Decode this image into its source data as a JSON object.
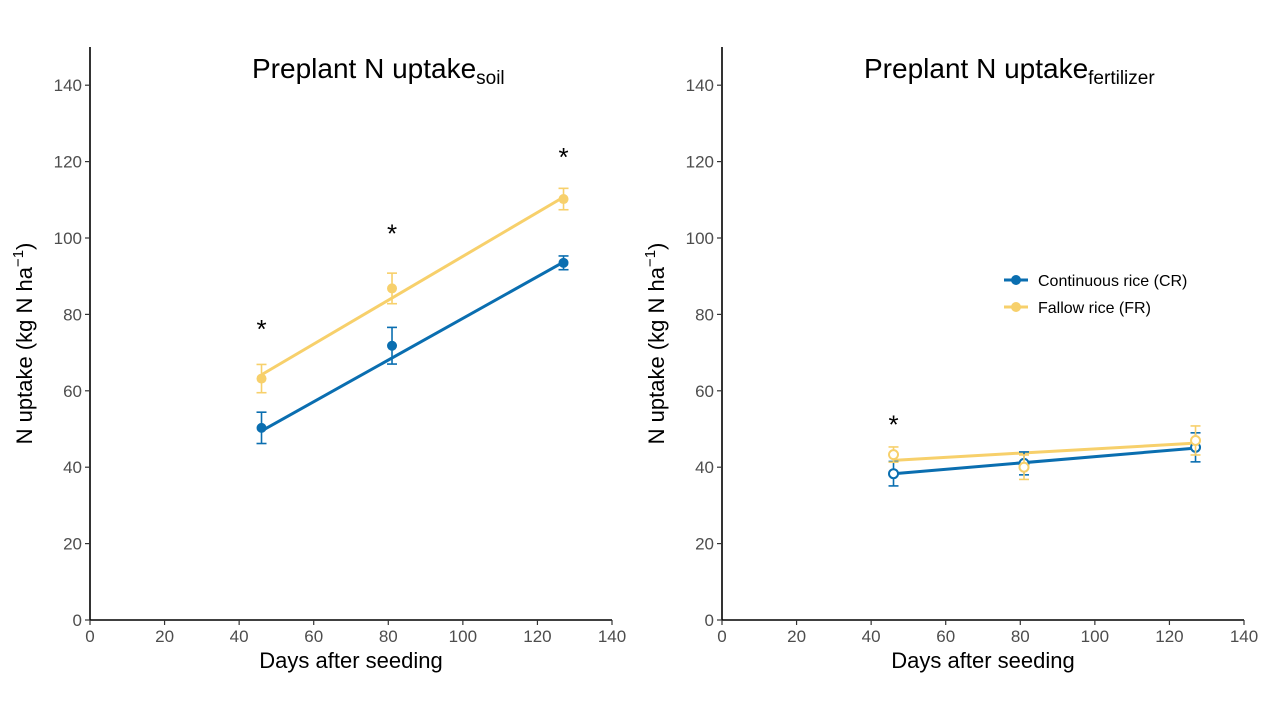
{
  "chart_data": [
    {
      "type": "scatter",
      "title": "Preplant N uptake",
      "title_subscript": "soil",
      "xlabel": "Days after seeding",
      "ylabel": "N uptake (kg N ha",
      "ylabel_superscript": "−1",
      "ylabel_close": ")",
      "xlim": [
        0,
        140
      ],
      "ylim": [
        0,
        150
      ],
      "xticks": [
        0,
        20,
        40,
        60,
        80,
        100,
        120,
        140
      ],
      "yticks": [
        0,
        20,
        40,
        60,
        80,
        100,
        120,
        140
      ],
      "grid": false,
      "series": [
        {
          "name": "Continuous rice (CR)",
          "color": "#0a6eb0",
          "x": [
            46,
            81,
            127
          ],
          "y": [
            50.3,
            71.8,
            93.5
          ],
          "err": [
            4.1,
            4.8,
            1.8
          ],
          "fit": {
            "x": [
              46,
              127
            ],
            "y": [
              49.5,
              93.7
            ]
          },
          "hollow": false
        },
        {
          "name": "Fallow rice (FR)",
          "color": "#f7d06b",
          "x": [
            46,
            81,
            127
          ],
          "y": [
            63.2,
            86.8,
            110.2
          ],
          "err": [
            3.7,
            4.0,
            2.8
          ],
          "fit": {
            "x": [
              46,
              127
            ],
            "y": [
              64.2,
              110.7
            ]
          },
          "hollow": false
        }
      ],
      "annotations": [
        {
          "text": "*",
          "x": 46,
          "y": 78
        },
        {
          "text": "*",
          "x": 81,
          "y": 103
        },
        {
          "text": "*",
          "x": 127,
          "y": 123
        }
      ]
    },
    {
      "type": "scatter",
      "title": "Preplant N uptake",
      "title_subscript": "fertilizer",
      "xlabel": "Days after seeding",
      "ylabel": "N uptake (kg N ha",
      "ylabel_superscript": "−1",
      "ylabel_close": ")",
      "xlim": [
        0,
        140
      ],
      "ylim": [
        0,
        150
      ],
      "xticks": [
        0,
        20,
        40,
        60,
        80,
        100,
        120,
        140
      ],
      "yticks": [
        0,
        20,
        40,
        60,
        80,
        100,
        120,
        140
      ],
      "grid": false,
      "legend_position": "right",
      "series": [
        {
          "name": "Continuous rice (CR)",
          "color": "#0a6eb0",
          "x": [
            46,
            81,
            127
          ],
          "y": [
            38.3,
            41.0,
            45.2
          ],
          "err": [
            3.2,
            3.0,
            3.8
          ],
          "fit": {
            "x": [
              46,
              127
            ],
            "y": [
              38.3,
              45.0
            ]
          },
          "hollow": true
        },
        {
          "name": "Fallow rice (FR)",
          "color": "#f7d06b",
          "x": [
            46,
            81,
            127
          ],
          "y": [
            43.3,
            40.0,
            47.0
          ],
          "err": [
            2.0,
            3.2,
            3.8
          ],
          "fit": {
            "x": [
              46,
              127
            ],
            "y": [
              41.8,
              46.3
            ]
          },
          "hollow": true
        }
      ],
      "annotations": [
        {
          "text": "*",
          "x": 46,
          "y": 53
        }
      ]
    }
  ]
}
